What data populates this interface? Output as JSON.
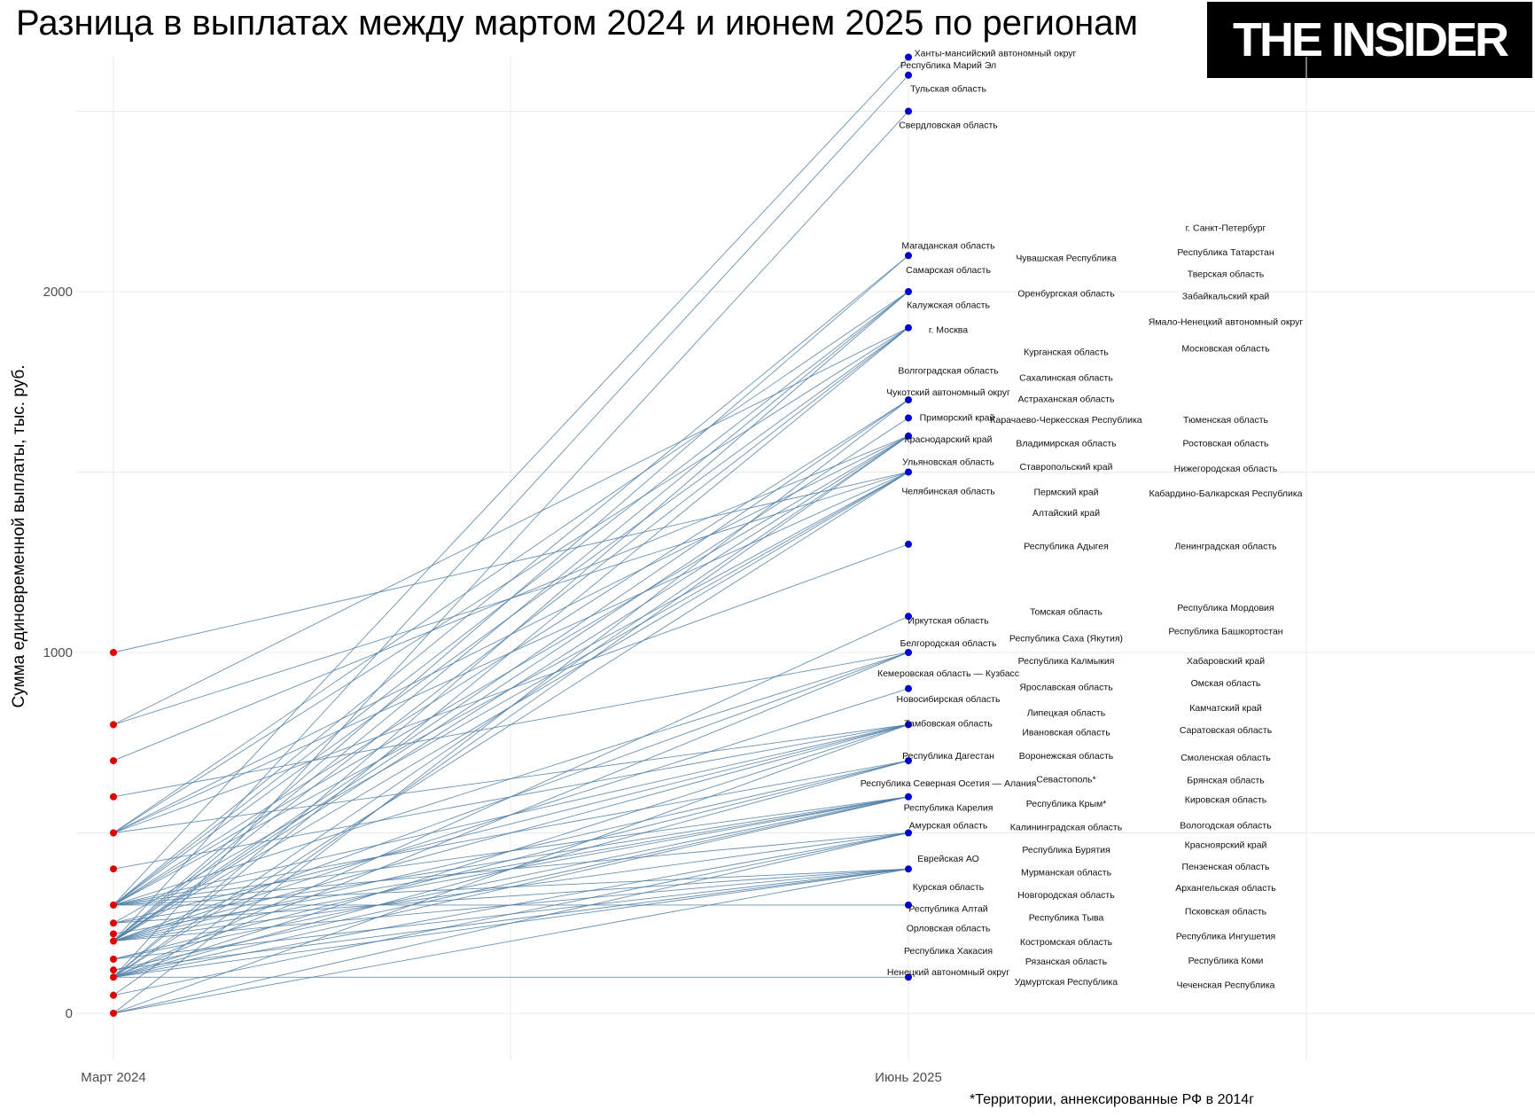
{
  "title": "Разница в выплатах между мартом 2024 и июнем 2025 по регионам",
  "logo": "THE INSIDER",
  "footnote": "*Территории, аннексированные РФ в 2014г",
  "chart_data": {
    "type": "line",
    "subtype": "slope",
    "title": "Разница в выплатах между мартом 2024 и июнем 2025 по регионам",
    "ylabel": "Сумма единовременной выплаты, тыс. руб.",
    "xlabel": "",
    "categories": [
      "Март 2024",
      "Июнь 2025"
    ],
    "yticks": [
      "0",
      "1000",
      "2000"
    ],
    "ylim": [
      -120,
      2680
    ],
    "grid": true,
    "colors": {
      "start_point": "#e00000",
      "end_point": "#0000cc",
      "line": "#4f7ea6"
    },
    "segments": [
      [
        300,
        2650
      ],
      [
        200,
        2600
      ],
      [
        100,
        2500
      ],
      [
        300,
        2100
      ],
      [
        200,
        2100
      ],
      [
        500,
        2000
      ],
      [
        300,
        2000
      ],
      [
        200,
        2000
      ],
      [
        100,
        2000
      ],
      [
        800,
        1900
      ],
      [
        500,
        1900
      ],
      [
        300,
        1900
      ],
      [
        200,
        1900
      ],
      [
        100,
        1900
      ],
      [
        300,
        1700
      ],
      [
        200,
        1700
      ],
      [
        0,
        1700
      ],
      [
        200,
        1650
      ],
      [
        700,
        1600
      ],
      [
        500,
        1600
      ],
      [
        300,
        1600
      ],
      [
        200,
        1600
      ],
      [
        100,
        1600
      ],
      [
        50,
        1600
      ],
      [
        1000,
        1500
      ],
      [
        800,
        1500
      ],
      [
        500,
        1500
      ],
      [
        300,
        1500
      ],
      [
        250,
        1500
      ],
      [
        200,
        1500
      ],
      [
        100,
        1500
      ],
      [
        500,
        1300
      ],
      [
        100,
        1100
      ],
      [
        600,
        1000
      ],
      [
        300,
        1000
      ],
      [
        200,
        1000
      ],
      [
        100,
        1000
      ],
      [
        200,
        900
      ],
      [
        500,
        800
      ],
      [
        400,
        800
      ],
      [
        300,
        800
      ],
      [
        250,
        800
      ],
      [
        200,
        800
      ],
      [
        100,
        800
      ],
      [
        0,
        800
      ],
      [
        300,
        700
      ],
      [
        200,
        700
      ],
      [
        150,
        700
      ],
      [
        100,
        700
      ],
      [
        300,
        600
      ],
      [
        250,
        600
      ],
      [
        220,
        600
      ],
      [
        200,
        600
      ],
      [
        150,
        600
      ],
      [
        120,
        600
      ],
      [
        100,
        600
      ],
      [
        300,
        500
      ],
      [
        200,
        500
      ],
      [
        100,
        500
      ],
      [
        50,
        500
      ],
      [
        0,
        500
      ],
      [
        300,
        400
      ],
      [
        250,
        400
      ],
      [
        200,
        400
      ],
      [
        150,
        400
      ],
      [
        120,
        400
      ],
      [
        100,
        400
      ],
      [
        0,
        400
      ],
      [
        300,
        300
      ],
      [
        100,
        100
      ]
    ],
    "labels_col1": [
      "Ханты-мансийский автономный округ",
      "Республика Марий Эл",
      "Тульская область",
      "Свердловская область",
      "Магаданская область",
      "Самарская область",
      "Калужская область",
      "г. Москва",
      "Волгоградская область",
      "Чукотский автономный округ",
      "Приморский край",
      "Краснодарский край",
      "Ульяновская область",
      "Челябинская область",
      "Иркутская область",
      "Белгородская область",
      "Кемеровская область — Кузбасс",
      "Новосибирская область",
      "Тамбовская область",
      "Республика Дагестан",
      "Республика Северная Осетия — Алания",
      "Республика Карелия",
      "Амурская область",
      "Еврейская АО",
      "Курская область",
      "Республика Алтай",
      "Орловская область",
      "Республика Хакасия",
      "Ненецкий автономный округ"
    ],
    "labels_col2": [
      "Чувашская Республика",
      "Оренбургская область",
      "Курганская область",
      "Сахалинская область",
      "Астраханская область",
      "Карачаево-Черкесская Республика",
      "Владимирская область",
      "Ставропольский край",
      "Пермский край",
      "Алтайский край",
      "Республика Адыгея",
      "Томская область",
      "Республика Саха (Якутия)",
      "Республика Калмыкия",
      "Ярославская область",
      "Липецкая область",
      "Ивановская область",
      "Воронежская область",
      "Севастополь*",
      "Республика Крым*",
      "Калининградская область",
      "Республика Бурятия",
      "Мурманская область",
      "Новгородская область",
      "Республика Тыва",
      "Костромская область",
      "Рязанская область",
      "Удмуртская Республика"
    ],
    "labels_col3": [
      "г. Санкт-Петербург",
      "Республика Татарстан",
      "Тверская область",
      "Забайкальский край",
      "Ямало-Ненецкий автономный округ",
      "Московская область",
      "Тюменская область",
      "Ростовская область",
      "Нижегородская область",
      "Кабардино-Балкарская Республика",
      "Ленинградская область",
      "Республика Мордовия",
      "Республика Башкортостан",
      "Хабаровский край",
      "Омская область",
      "Камчатский край",
      "Саратовская область",
      "Смоленская область",
      "Брянская область",
      "Кировская область",
      "Вологодская область",
      "Красноярский край",
      "Пензенская область",
      "Архангельская область",
      "Псковская область",
      "Республика Ингушетия",
      "Республика Коми",
      "Чеченская Республика"
    ]
  }
}
